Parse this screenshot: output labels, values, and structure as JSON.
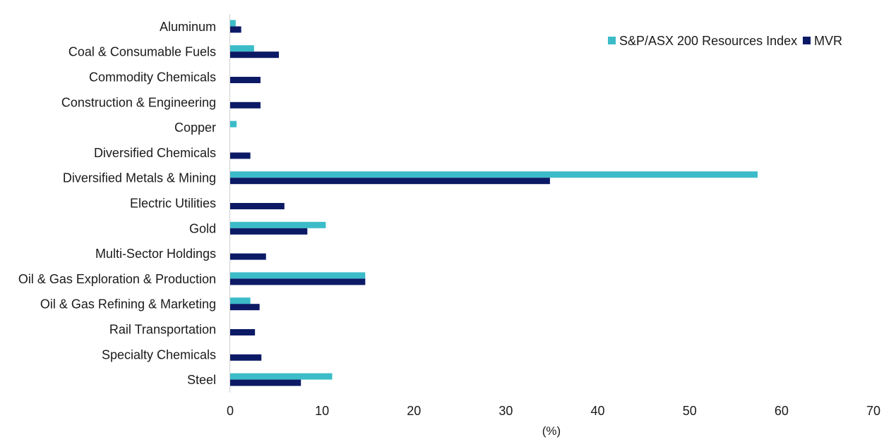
{
  "chart_data": {
    "type": "bar",
    "orientation": "horizontal",
    "categories": [
      "Aluminum",
      "Coal & Consumable Fuels",
      "Commodity Chemicals",
      "Construction & Engineering",
      "Copper",
      "Diversified Chemicals",
      "Diversified Metals & Mining",
      "Electric Utilities",
      "Gold",
      "Multi-Sector Holdings",
      "Oil & Gas Exploration & Production",
      "Oil & Gas Refining & Marketing",
      "Rail Transportation",
      "Specialty Chemicals",
      "Steel"
    ],
    "series": [
      {
        "name": "S&P/ASX 200 Resources Index",
        "color": "#3bbcc8",
        "values": [
          0.6,
          2.6,
          0,
          0,
          0.7,
          0,
          57.4,
          0,
          10.4,
          0,
          14.7,
          2.2,
          0,
          0,
          11.1
        ]
      },
      {
        "name": "MVR",
        "color": "#0c1a66",
        "values": [
          1.2,
          5.3,
          3.3,
          3.3,
          0,
          2.2,
          34.8,
          5.9,
          8.4,
          3.9,
          14.7,
          3.2,
          2.7,
          3.4,
          7.7
        ]
      }
    ],
    "xlabel": "(%)",
    "xlim": [
      0,
      70
    ],
    "xticks": [
      "0",
      "10",
      "20",
      "30",
      "40",
      "50",
      "60",
      "70"
    ],
    "grid": false,
    "legend_position": "top-right"
  }
}
